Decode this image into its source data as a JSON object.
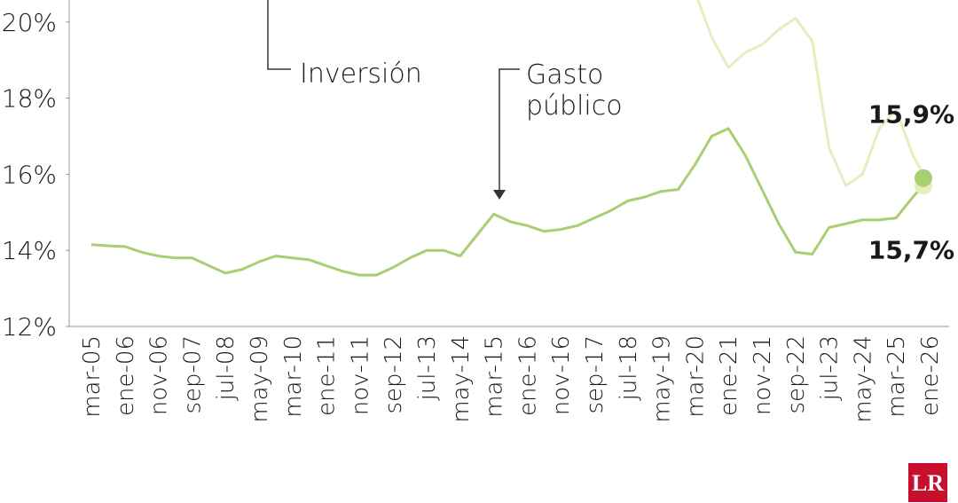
{
  "chart_data": {
    "type": "line",
    "categories": [
      "mar-05",
      null,
      "ene-06",
      null,
      "nov-06",
      null,
      "sep-07",
      null,
      "jul-08",
      null,
      "may-09",
      null,
      "mar-10",
      null,
      "ene-11",
      null,
      "nov-11",
      null,
      "sep-12",
      null,
      "jul-13",
      null,
      "may-14",
      null,
      "mar-15",
      null,
      "ene-16",
      null,
      "nov-16",
      null,
      "sep-17",
      null,
      "jul-18",
      null,
      "may-19",
      null,
      "mar-20",
      null,
      "ene-21",
      null,
      "nov-21",
      null,
      "sep-22",
      null,
      "jul-23",
      null,
      "may-24",
      null,
      "mar-25",
      null,
      "ene-26"
    ],
    "series": [
      {
        "name": "Inversión",
        "color": "#e6eec0",
        "values": [
          null,
          null,
          null,
          null,
          null,
          null,
          null,
          null,
          null,
          null,
          null,
          null,
          null,
          null,
          null,
          null,
          null,
          null,
          null,
          null,
          null,
          null,
          null,
          null,
          null,
          null,
          null,
          null,
          null,
          null,
          null,
          null,
          null,
          null,
          null,
          null,
          20.8,
          19.6,
          18.8,
          19.2,
          19.4,
          19.8,
          20.1,
          19.5,
          16.7,
          15.7,
          16.0,
          17.2,
          17.7,
          16.5,
          15.7
        ],
        "value_labels": [
          null,
          null,
          null,
          null,
          null,
          null,
          null,
          null,
          null,
          null,
          null,
          null,
          null,
          null,
          null,
          null,
          null,
          null,
          null,
          null,
          null,
          null,
          null,
          null,
          null,
          null,
          null,
          null,
          null,
          null,
          null,
          null,
          null,
          null,
          null,
          null,
          null,
          null,
          null,
          null,
          null,
          null,
          null,
          null,
          null,
          null,
          null,
          null,
          null,
          null,
          "15,7%"
        ]
      },
      {
        "name": "Gasto público",
        "color": "#a9cf72",
        "values": [
          14.15,
          14.12,
          14.1,
          13.95,
          13.85,
          13.8,
          13.8,
          13.6,
          13.4,
          13.5,
          13.7,
          13.85,
          13.8,
          13.75,
          13.6,
          13.45,
          13.35,
          13.35,
          13.55,
          13.8,
          14.0,
          14.0,
          13.85,
          14.4,
          14.95,
          14.75,
          14.65,
          14.5,
          14.55,
          14.65,
          14.85,
          15.05,
          15.3,
          15.4,
          15.55,
          15.6,
          16.25,
          17.0,
          17.2,
          16.5,
          15.6,
          14.7,
          13.95,
          13.9,
          14.6,
          14.7,
          14.8,
          14.8,
          14.85,
          15.4,
          15.9
        ],
        "value_labels": [
          null,
          null,
          null,
          null,
          null,
          null,
          null,
          null,
          null,
          null,
          null,
          null,
          null,
          null,
          null,
          null,
          null,
          null,
          null,
          null,
          null,
          null,
          null,
          null,
          null,
          null,
          null,
          null,
          null,
          null,
          null,
          null,
          null,
          null,
          null,
          null,
          null,
          null,
          null,
          null,
          null,
          null,
          null,
          null,
          null,
          null,
          null,
          null,
          null,
          null,
          "15,9%"
        ]
      }
    ],
    "ylim": [
      12,
      20.6
    ],
    "yticks": [
      {
        "value": 12,
        "label": "12%"
      },
      {
        "value": 14,
        "label": "14%"
      },
      {
        "value": 16,
        "label": "16%"
      },
      {
        "value": 18,
        "label": "18%"
      },
      {
        "value": 20,
        "label": "20%"
      }
    ],
    "logo": "LR"
  }
}
